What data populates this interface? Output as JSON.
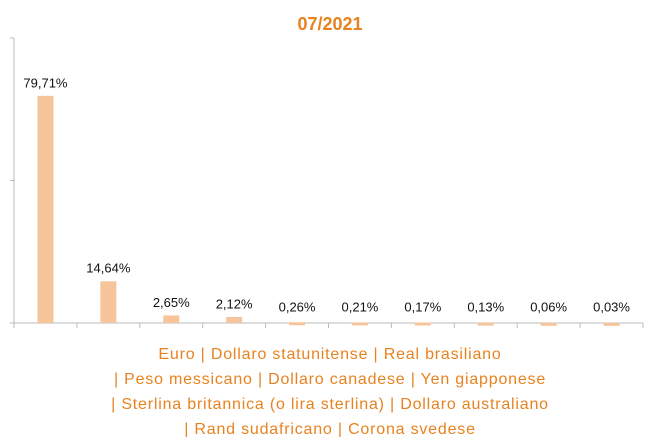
{
  "chart_data": {
    "type": "bar",
    "title": "07/2021",
    "categories": [
      null,
      null,
      null,
      null,
      null,
      null,
      null,
      null,
      null,
      null
    ],
    "values": [
      79.71,
      14.64,
      2.65,
      2.12,
      0.26,
      0.21,
      0.17,
      0.13,
      0.06,
      0.03
    ],
    "value_labels": [
      "79,71%",
      "14,64%",
      "2,65%",
      "2,12%",
      "0,26%",
      "0,21%",
      "0,17%",
      "0,13%",
      "0,06%",
      "0,03%"
    ],
    "color": "#f7c59b",
    "ylim": [
      0,
      100
    ],
    "yticks": [
      0,
      50,
      100
    ],
    "ytick_labels": false,
    "grid": false,
    "xlabel_lines": [
      "Euro | Dollaro statunitense | Real brasiliano",
      "| Peso messicano | Dollaro canadese | Yen giapponese",
      "| Sterlina britannica (o lira sterlina) | Dollaro australiano",
      "| Rand sudafricano | Corona svedese"
    ]
  }
}
